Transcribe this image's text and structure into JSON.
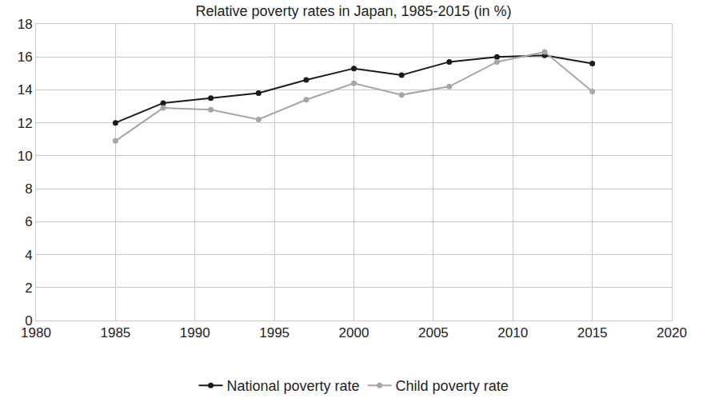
{
  "chart_data": {
    "type": "line",
    "title": "Relative poverty rates in Japan, 1985-2015 (in %)",
    "x": [
      1985,
      1988,
      1991,
      1994,
      1997,
      2000,
      2003,
      2006,
      2009,
      2012,
      2015
    ],
    "series": [
      {
        "name": "National poverty rate",
        "color": "#1a1a1a",
        "marker": "circle",
        "values": [
          12.0,
          13.2,
          13.5,
          13.8,
          14.6,
          15.3,
          14.9,
          15.7,
          16.0,
          16.1,
          15.6
        ]
      },
      {
        "name": "Child poverty rate",
        "color": "#a6a6a6",
        "marker": "circle",
        "values": [
          10.9,
          12.9,
          12.8,
          12.2,
          13.4,
          14.4,
          13.7,
          14.2,
          15.7,
          16.3,
          13.9
        ]
      }
    ],
    "xlim": [
      1980,
      2020
    ],
    "xticks": [
      1980,
      1985,
      1990,
      1995,
      2000,
      2005,
      2010,
      2015,
      2020
    ],
    "ylim": [
      0,
      18
    ],
    "yticks": [
      0,
      2,
      4,
      6,
      8,
      10,
      12,
      14,
      16,
      18
    ],
    "grid": true,
    "legend": "bottom"
  }
}
